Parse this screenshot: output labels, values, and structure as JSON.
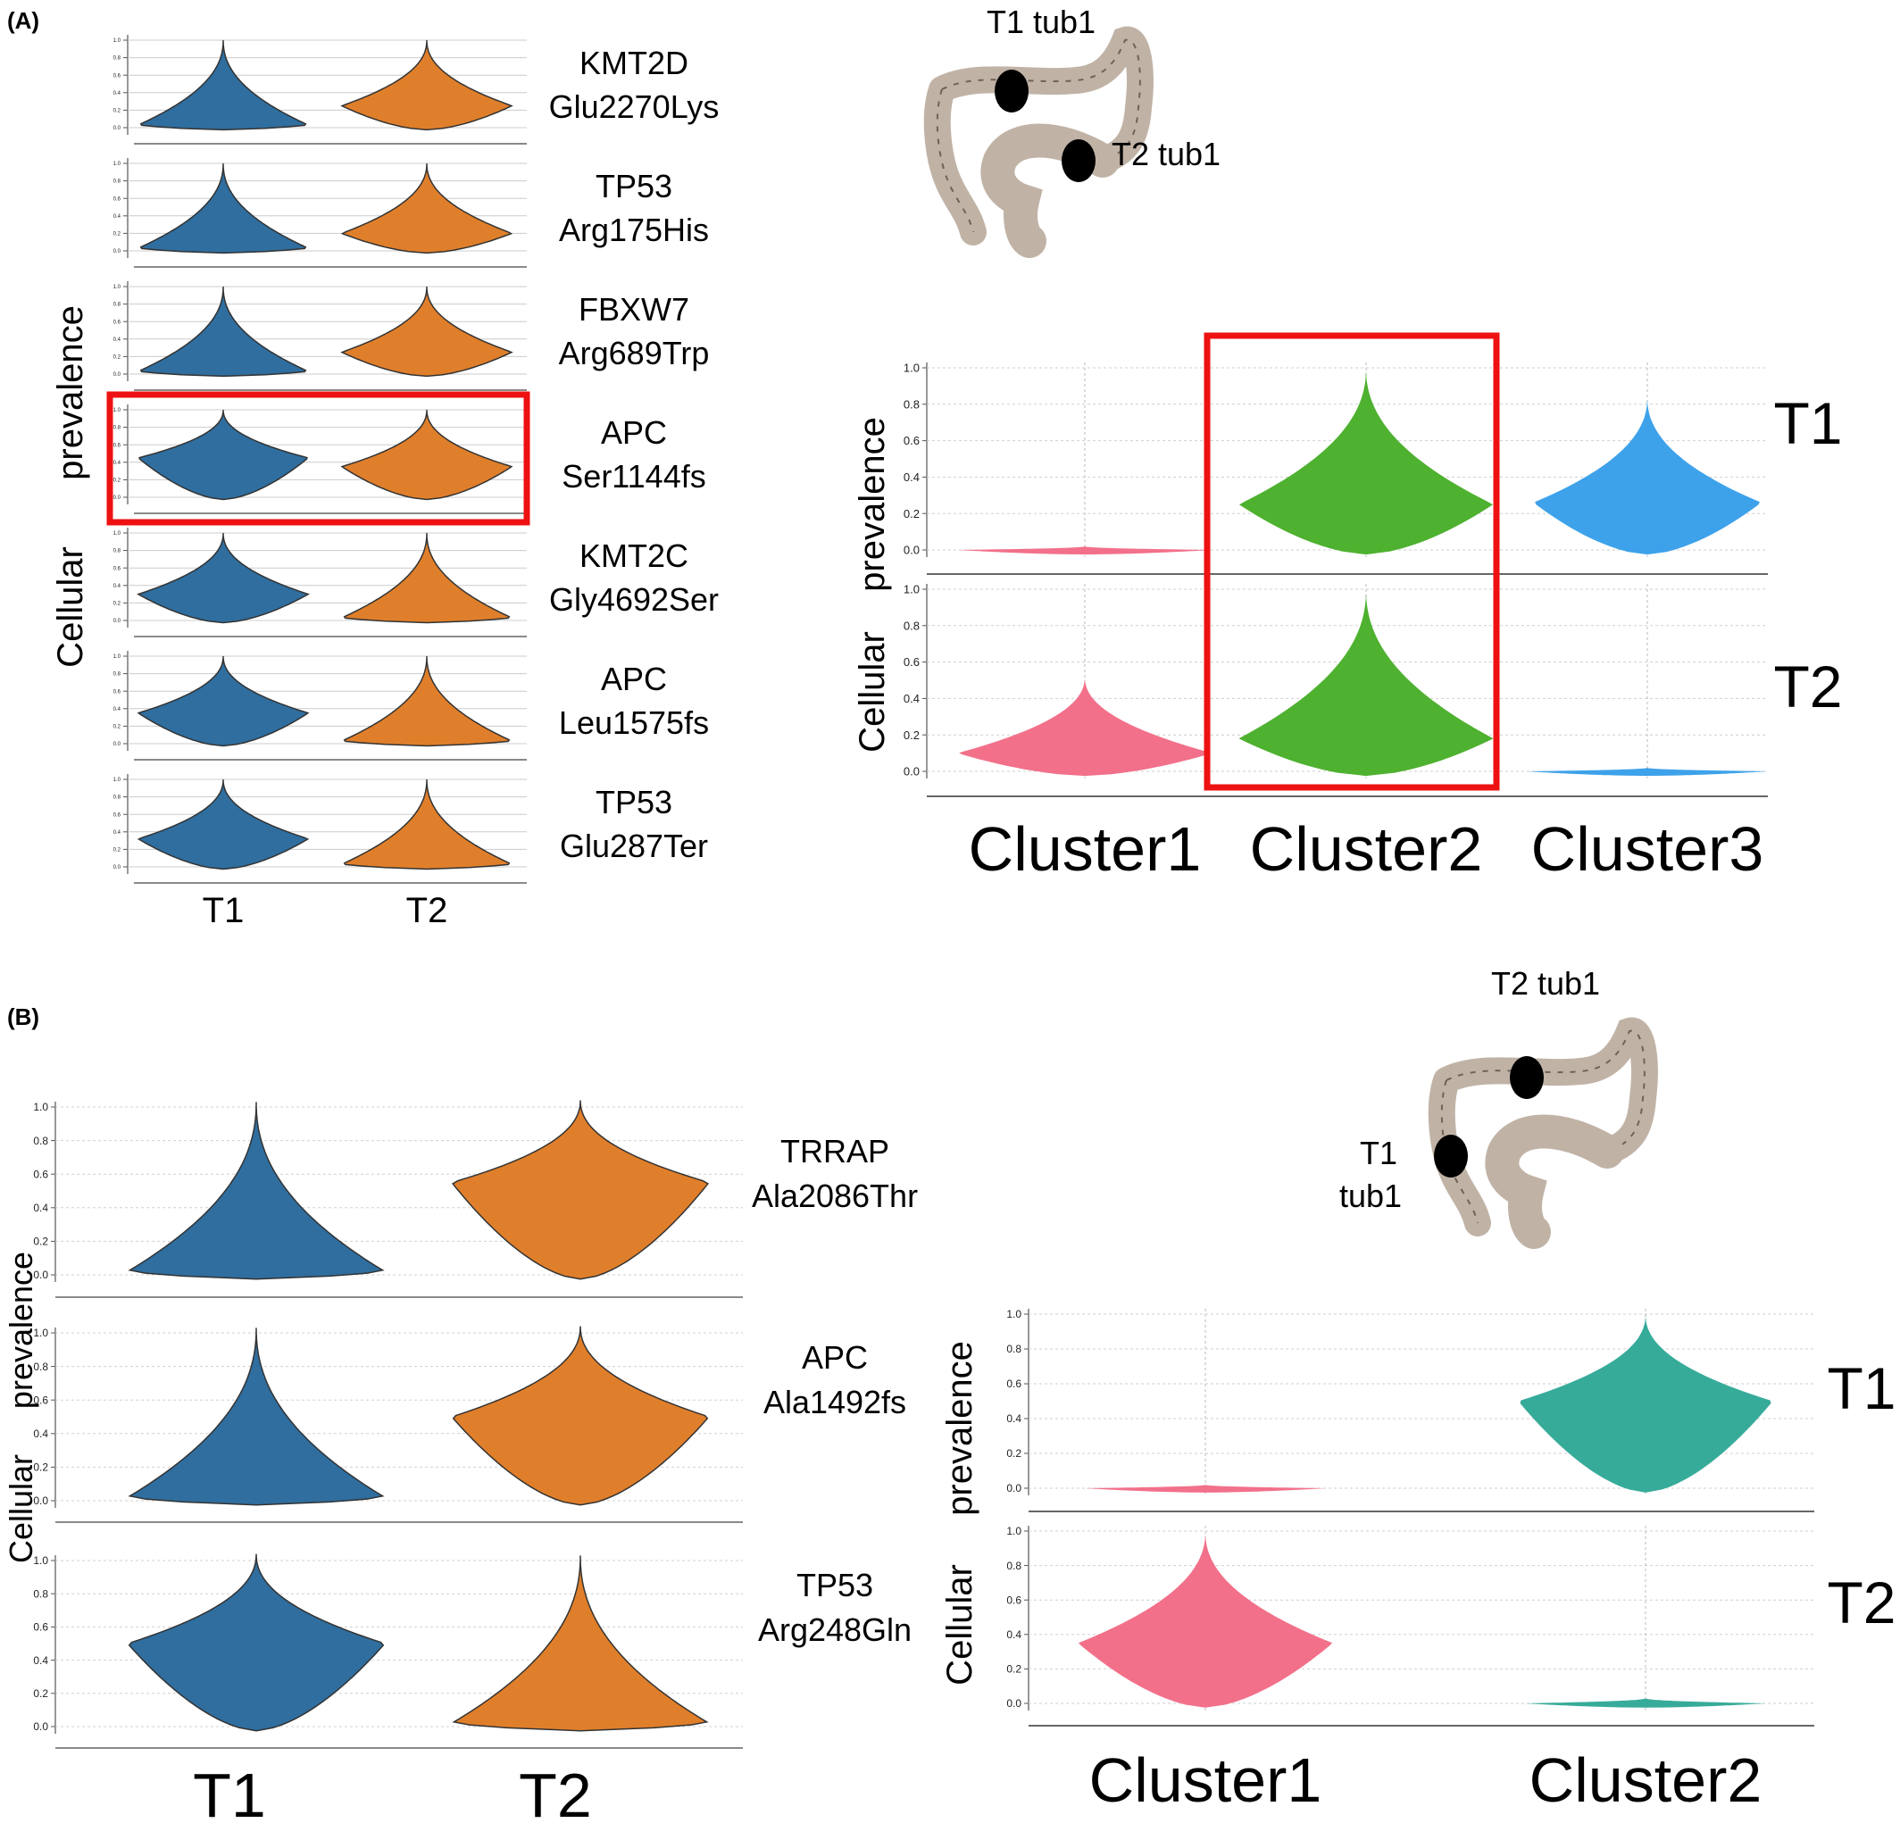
{
  "panel_labels": {
    "a": "(A)",
    "b": "(B)"
  },
  "colors": {
    "T1": "#2f6e9f",
    "T2": "#e07f2b",
    "Cluster1": "#f2708a",
    "Cluster2_A": "#4eb12f",
    "Cluster3": "#3ea2ea",
    "Cluster2_B": "#37ab9a",
    "highlight": "#ee1111",
    "colon": "#c0b3a6",
    "lesion": "#000000"
  },
  "colon_a": {
    "t1_label": "T1 tub1",
    "t2_label": "T2  tub1"
  },
  "colon_b": {
    "t2_label": "T2  tub1",
    "t1_label": "T1",
    "t1_sub": "tub1"
  },
  "chart_data": [
    {
      "type": "violin",
      "panel": "(A) left",
      "ylabel": "Cellular prevalence",
      "ylabel_line1": "Cellular",
      "ylabel_line2": "prevalence",
      "yticks": [
        0.0,
        0.2,
        0.4,
        0.6,
        0.8,
        1.0
      ],
      "ylim": [
        0,
        1
      ],
      "categories": [
        "T1",
        "T2"
      ],
      "rows": [
        {
          "gene": "KMT2D",
          "variant": "Glu2270Lys",
          "T1": {
            "mode": 0.03,
            "max": 1.0,
            "width": 0.85
          },
          "T2": {
            "mode": 0.25,
            "max": 1.0,
            "width": 0.85
          }
        },
        {
          "gene": "TP53",
          "variant": "Arg175His",
          "T1": {
            "mode": 0.03,
            "max": 1.0,
            "width": 0.85
          },
          "T2": {
            "mode": 0.2,
            "max": 1.0,
            "width": 0.85
          }
        },
        {
          "gene": "FBXW7",
          "variant": "Arg689Trp",
          "T1": {
            "mode": 0.03,
            "max": 1.0,
            "width": 0.85
          },
          "T2": {
            "mode": 0.25,
            "max": 1.0,
            "width": 0.85
          }
        },
        {
          "gene": "APC",
          "variant": "Ser1144fs",
          "T1": {
            "mode": 0.45,
            "max": 1.0,
            "width": 0.85
          },
          "T2": {
            "mode": 0.35,
            "max": 1.0,
            "width": 0.85
          },
          "highlighted": true
        },
        {
          "gene": "KMT2C",
          "variant": "Gly4692Ser",
          "T1": {
            "mode": 0.3,
            "max": 1.0,
            "width": 0.85
          },
          "T2": {
            "mode": 0.03,
            "max": 1.0,
            "width": 0.85
          }
        },
        {
          "gene": "APC",
          "variant": "Leu1575fs",
          "T1": {
            "mode": 0.35,
            "max": 1.0,
            "width": 0.85
          },
          "T2": {
            "mode": 0.03,
            "max": 1.0,
            "width": 0.85
          }
        },
        {
          "gene": "TP53",
          "variant": "Glu287Ter",
          "T1": {
            "mode": 0.32,
            "max": 1.0,
            "width": 0.85
          },
          "T2": {
            "mode": 0.03,
            "max": 1.0,
            "width": 0.85
          }
        }
      ]
    },
    {
      "type": "violin",
      "panel": "(A) right",
      "ylabel": "Cellular prevalence",
      "ylabel_line1": "Cellular",
      "ylabel_line2": "prevalence",
      "yticks": [
        0.0,
        0.2,
        0.4,
        0.6,
        0.8,
        1.0
      ],
      "ylim": [
        0,
        1
      ],
      "categories": [
        "Cluster1",
        "Cluster2",
        "Cluster3"
      ],
      "highlight_category": "Cluster2",
      "rows": [
        {
          "label": "T1",
          "violins": [
            {
              "mode": 0.0,
              "max": 0.02,
              "width": 0.95
            },
            {
              "mode": 0.25,
              "max": 1.0,
              "width": 0.95
            },
            {
              "mode": 0.26,
              "max": 0.84,
              "width": 0.85
            }
          ]
        },
        {
          "label": "T2",
          "violins": [
            {
              "mode": 0.1,
              "max": 0.52,
              "width": 0.95
            },
            {
              "mode": 0.18,
              "max": 1.0,
              "width": 0.95
            },
            {
              "mode": 0.0,
              "max": 0.02,
              "width": 0.9
            }
          ]
        }
      ]
    },
    {
      "type": "violin",
      "panel": "(B) left",
      "ylabel": "Cellular prevalence",
      "ylabel_line1": "Cellular",
      "ylabel_line2": "prevalence",
      "yticks": [
        0.0,
        0.2,
        0.4,
        0.6,
        0.8,
        1.0
      ],
      "ylim": [
        0,
        1
      ],
      "categories": [
        "T1",
        "T2"
      ],
      "rows": [
        {
          "gene": "TRRAP",
          "variant": "Ala2086Thr",
          "T1": {
            "mode": 0.02,
            "max": 1.03,
            "width": 0.8
          },
          "T2": {
            "mode": 0.55,
            "max": 1.04,
            "width": 0.8
          }
        },
        {
          "gene": "APC",
          "variant": "Ala1492fs",
          "T1": {
            "mode": 0.02,
            "max": 1.03,
            "width": 0.8
          },
          "T2": {
            "mode": 0.5,
            "max": 1.04,
            "width": 0.8
          }
        },
        {
          "gene": "TP53",
          "variant": "Arg248Gln",
          "T1": {
            "mode": 0.5,
            "max": 1.04,
            "width": 0.8
          },
          "T2": {
            "mode": 0.02,
            "max": 1.03,
            "width": 0.8
          }
        }
      ]
    },
    {
      "type": "violin",
      "panel": "(B) right",
      "ylabel": "Cellular prevalence",
      "ylabel_line1": "Cellular",
      "ylabel_line2": "prevalence",
      "yticks": [
        0.0,
        0.2,
        0.4,
        0.6,
        0.8,
        1.0
      ],
      "ylim": [
        0,
        1
      ],
      "categories": [
        "Cluster1",
        "Cluster2"
      ],
      "rows": [
        {
          "label": "T1",
          "violins": [
            {
              "mode": 0.0,
              "max": 0.02,
              "width": 0.9
            },
            {
              "mode": 0.5,
              "max": 1.0,
              "width": 0.95
            }
          ]
        },
        {
          "label": "T2",
          "violins": [
            {
              "mode": 0.35,
              "max": 1.0,
              "width": 0.95
            },
            {
              "mode": 0.0,
              "max": 0.03,
              "width": 0.9
            }
          ]
        }
      ]
    }
  ]
}
